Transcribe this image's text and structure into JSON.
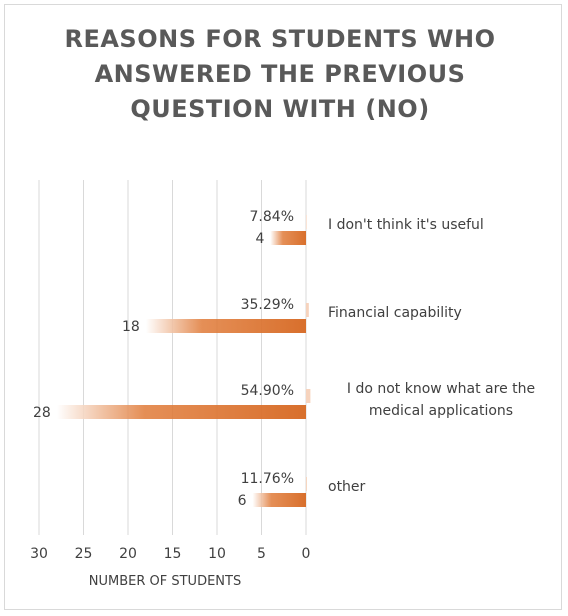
{
  "chart_data": {
    "type": "bar",
    "orientation": "horizontal",
    "reversed_x_axis": true,
    "title": "REASONS FOR STUDENTS WHO ANSWERED THE PREVIOUS QUESTION WITH (NO)",
    "xlabel": "NUMBER OF STUDENTS",
    "xlim": [
      0,
      30
    ],
    "xticks": [
      "30",
      "25",
      "20",
      "15",
      "10",
      "5",
      "0"
    ],
    "grid": true,
    "categories": [
      [
        "I don't think it's useful"
      ],
      [
        "Financial capability"
      ],
      [
        "I do not know what are the",
        "medical applications"
      ],
      [
        "other"
      ]
    ],
    "values": [
      4,
      18,
      28,
      6
    ],
    "value_labels": [
      "4",
      "18",
      "28",
      "6"
    ],
    "percent_values": [
      7.84,
      35.29,
      54.9,
      11.76
    ],
    "percent_labels": [
      "7.84%",
      "35.29%",
      "54.90%",
      "11.76%"
    ],
    "colors": {
      "bar": "#e07b39",
      "percent_bar": "#f6d3bd",
      "grid": "#d9d9d9",
      "text": "#404040",
      "title": "#595959"
    }
  }
}
